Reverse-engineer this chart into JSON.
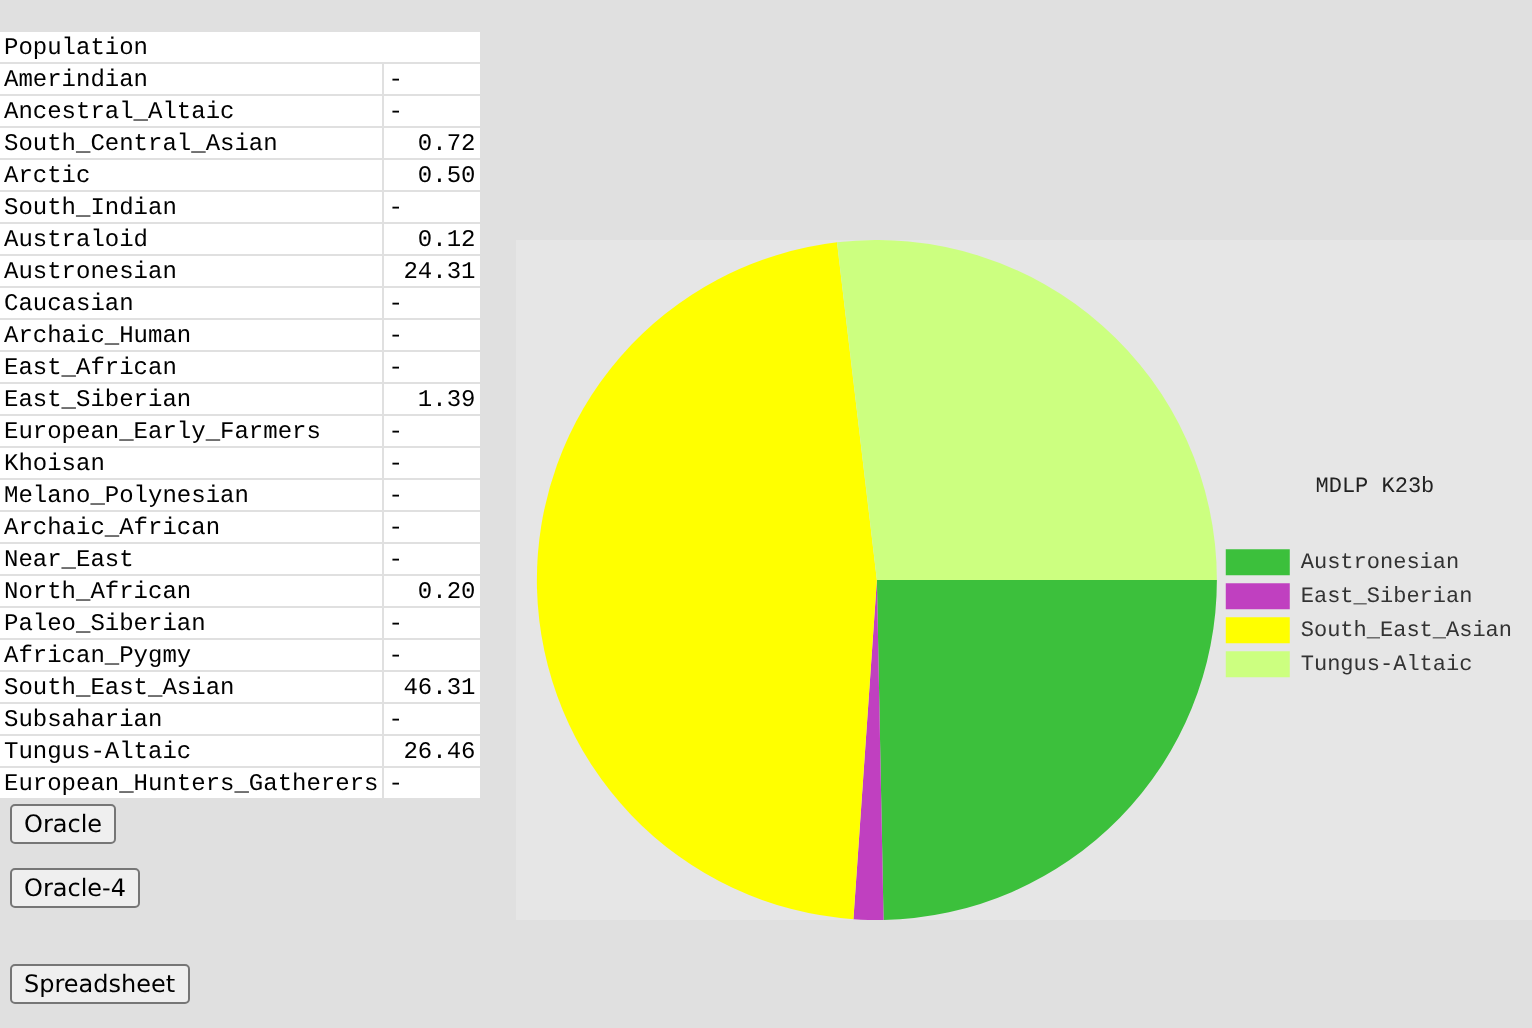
{
  "chart_data": [
    {
      "type": "other",
      "title": "Population",
      "categories": [
        "Amerindian",
        "Ancestral_Altaic",
        "South_Central_Asian",
        "Arctic",
        "South_Indian",
        "Australoid",
        "Austronesian",
        "Caucasian",
        "Archaic_Human",
        "East_African",
        "East_Siberian",
        "European_Early_Farmers",
        "Khoisan",
        "Melano_Polynesian",
        "Archaic_African",
        "Near_East",
        "North_African",
        "Paleo_Siberian",
        "African_Pygmy",
        "South_East_Asian",
        "Subsaharian",
        "Tungus-Altaic",
        "European_Hunters_Gatherers"
      ],
      "values": [
        null,
        null,
        0.72,
        0.5,
        null,
        0.12,
        24.31,
        null,
        null,
        null,
        1.39,
        null,
        null,
        null,
        null,
        null,
        0.2,
        null,
        null,
        46.31,
        null,
        26.46,
        null
      ],
      "value_labels": [
        "-",
        "-",
        "0.72",
        "0.50",
        "-",
        "0.12",
        "24.31",
        "-",
        "-",
        "-",
        "1.39",
        "-",
        "-",
        "-",
        "-",
        "-",
        "0.20",
        "-",
        "-",
        "46.31",
        "-",
        "26.46",
        "-"
      ],
      "annotations": [
        "Oracle",
        "Oracle-4",
        "Spreadsheet"
      ]
    },
    {
      "type": "pie",
      "title": "MDLP K23b",
      "categories": [
        "Austronesian",
        "East_Siberian",
        "South_East_Asian",
        "Tungus-Altaic"
      ],
      "values": [
        24.31,
        1.39,
        46.31,
        26.46
      ],
      "colors": [
        "#3cc03c",
        "#c040c0",
        "#ffff00",
        "#ccff80"
      ],
      "legend": "right"
    }
  ]
}
